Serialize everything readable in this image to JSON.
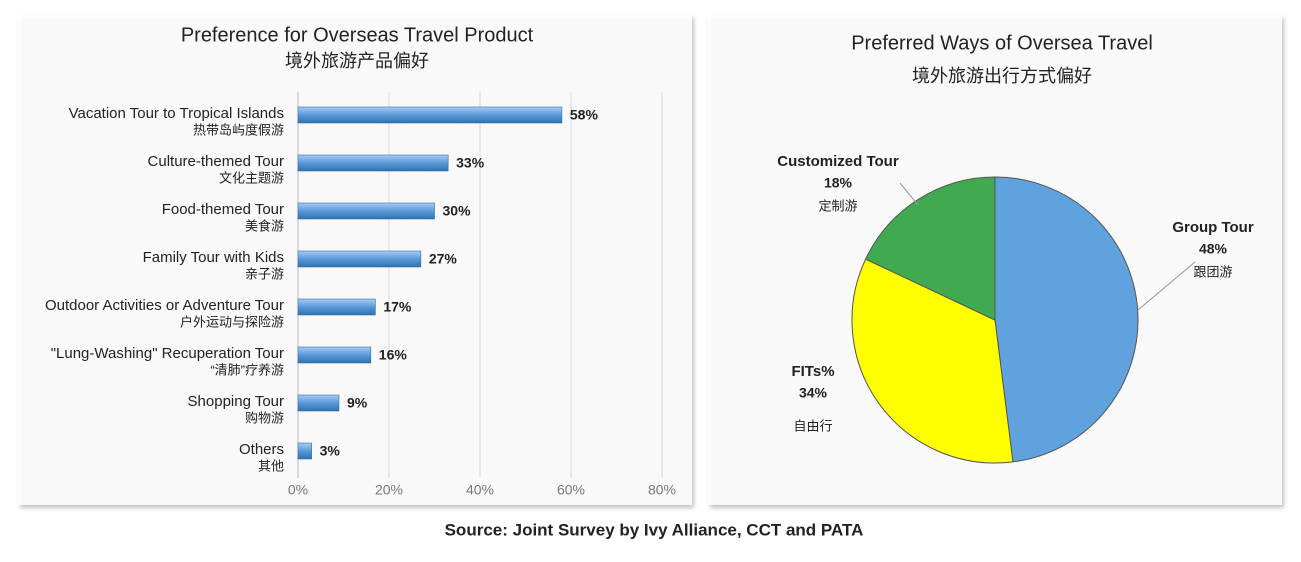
{
  "chart_data": [
    {
      "type": "bar",
      "orientation": "horizontal",
      "title": "Preference for Overseas Travel Product",
      "subtitle": "境外旅游产品偏好",
      "categories": [
        "Vacation Tour to Tropical Islands",
        "Culture-themed Tour",
        "Food-themed Tour",
        "Family Tour with Kids",
        "Outdoor Activities or Adventure Tour",
        "\"Lung-Washing\" Recuperation Tour",
        "Shopping Tour",
        "Others"
      ],
      "category_subtitles": [
        "热带岛屿度假游",
        "文化主题游",
        "美食游",
        "亲子游",
        "户外运动与探险游",
        "“清肺”疗养游",
        "购物游",
        "其他"
      ],
      "values": [
        58,
        33,
        30,
        27,
        17,
        16,
        9,
        3
      ],
      "value_labels": [
        "58%",
        "33%",
        "30%",
        "27%",
        "17%",
        "16%",
        "9%",
        "3%"
      ],
      "color": "#5b9bd5",
      "xlim": [
        0,
        80
      ],
      "xticks": [
        {
          "value": 0,
          "label": "0%"
        },
        {
          "value": 20,
          "label": "20%"
        },
        {
          "value": 40,
          "label": "40%"
        },
        {
          "value": 60,
          "label": "60%"
        },
        {
          "value": 80,
          "label": "80%"
        }
      ],
      "grid": true
    },
    {
      "type": "pie",
      "title": "Preferred Ways of Oversea Travel",
      "subtitle": "境外旅游出行方式偏好",
      "categories": [
        "Group Tour",
        "FITs%",
        "Customized Tour"
      ],
      "category_subtitles": [
        "跟团游",
        "自由行",
        "定制游"
      ],
      "values": [
        48,
        34,
        18
      ],
      "value_labels": [
        "48%",
        "34%",
        "18%"
      ],
      "colors": [
        "#5fa2dd",
        "#ffff00",
        "#3faa4f"
      ]
    }
  ],
  "source": "Source: Joint Survey by Ivy Alliance, CCT and PATA"
}
